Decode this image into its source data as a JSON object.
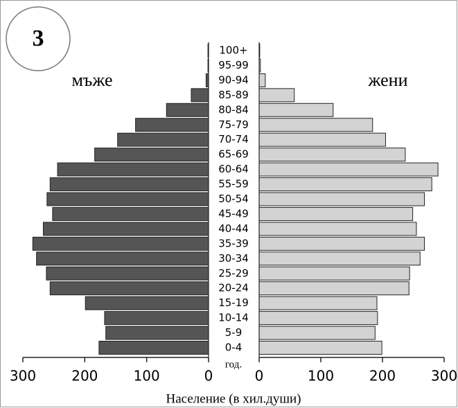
{
  "badge": "3",
  "chart_data": {
    "type": "pyramid",
    "categories": [
      "100+",
      "95-99",
      "90-94",
      "85-89",
      "80-84",
      "75-79",
      "70-74",
      "65-69",
      "60-64",
      "55-59",
      "50-54",
      "45-49",
      "40-44",
      "35-39",
      "30-34",
      "25-29",
      "20-24",
      "15-19",
      "10-14",
      "5-9",
      "0-4"
    ],
    "series": [
      {
        "name": "мъже",
        "color": "#555555",
        "side": "left",
        "values": [
          1,
          1,
          4,
          28,
          68,
          118,
          147,
          184,
          244,
          256,
          261,
          252,
          267,
          284,
          278,
          262,
          256,
          199,
          168,
          166,
          177
        ]
      },
      {
        "name": "жени",
        "color": "#d3d3d3",
        "side": "right",
        "values": [
          1,
          2,
          10,
          57,
          120,
          184,
          205,
          237,
          290,
          280,
          268,
          249,
          255,
          268,
          261,
          244,
          243,
          191,
          192,
          188,
          199
        ]
      }
    ],
    "category_axis_label": "год.",
    "xlabel": "Население (в хил.души)",
    "xlim": [
      0,
      300
    ],
    "xticks": [
      0,
      100,
      200,
      300
    ]
  }
}
